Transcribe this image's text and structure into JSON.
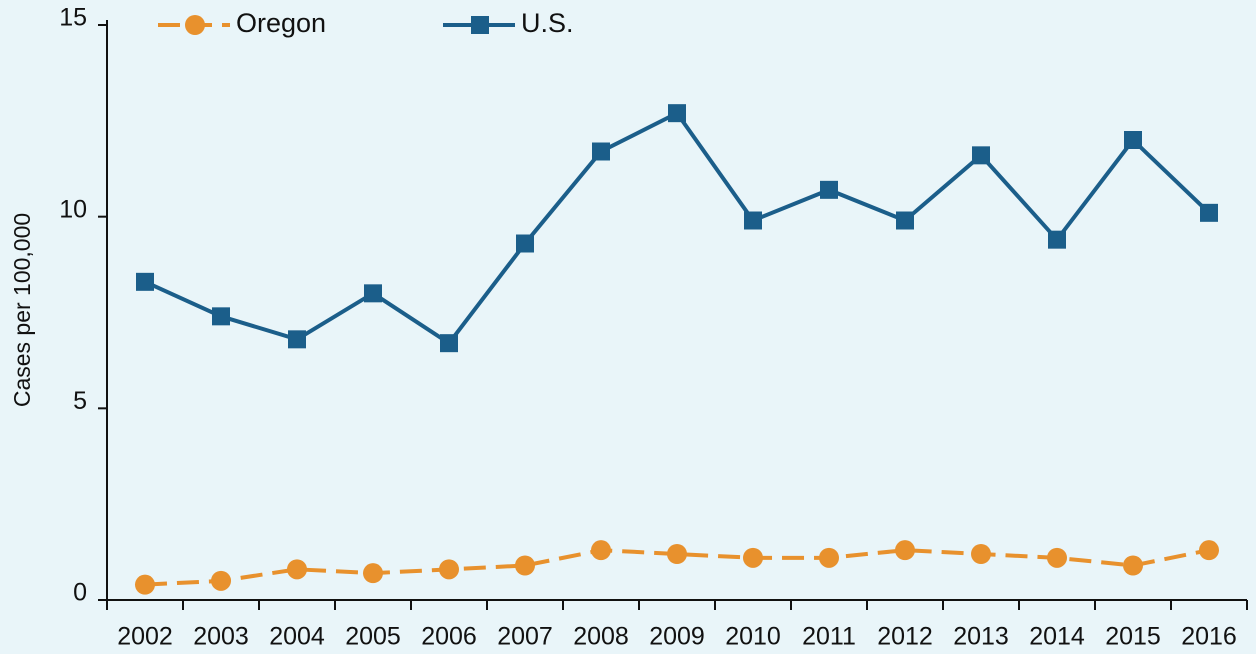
{
  "chart_data": {
    "type": "line",
    "y_label": "Cases per 100,000",
    "categories": [
      "2002",
      "2003",
      "2004",
      "2005",
      "2006",
      "2007",
      "2008",
      "2009",
      "2010",
      "2011",
      "2012",
      "2013",
      "2014",
      "2015",
      "2016"
    ],
    "series": [
      {
        "name": "Oregon",
        "color": "#e8912d",
        "dashed": true,
        "marker": "circle",
        "values": [
          0.4,
          0.5,
          0.8,
          0.7,
          0.8,
          0.9,
          1.3,
          1.2,
          1.1,
          1.1,
          1.3,
          1.2,
          1.1,
          0.9,
          1.3
        ]
      },
      {
        "name": "U.S.",
        "color": "#1b5e8a",
        "dashed": false,
        "marker": "square",
        "values": [
          8.3,
          7.4,
          6.8,
          8.0,
          6.7,
          9.3,
          11.7,
          12.7,
          9.9,
          10.7,
          9.9,
          11.6,
          9.4,
          12.0,
          10.1
        ]
      }
    ],
    "ylim": [
      0,
      15
    ],
    "yticks": [
      0,
      5,
      10,
      15
    ],
    "grid": false
  }
}
